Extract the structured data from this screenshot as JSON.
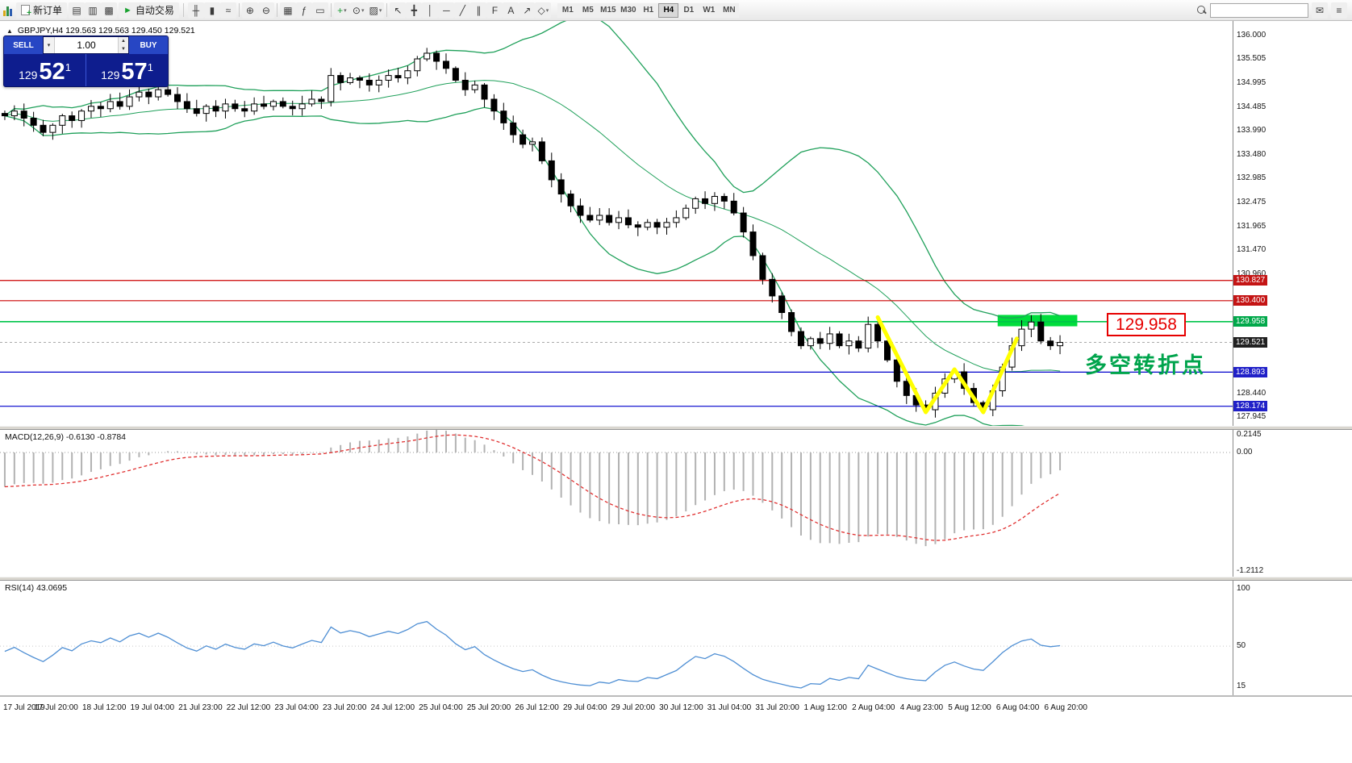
{
  "toolbar": {
    "new_order_label": "新订单",
    "auto_trading_label": "自动交易",
    "left_icons": [
      {
        "name": "new-chart-icon",
        "glyph": "▤"
      },
      {
        "name": "profiles-icon",
        "glyph": "▥"
      },
      {
        "name": "market-watch-icon",
        "glyph": "▩"
      }
    ],
    "icon_groups": [
      {
        "items": [
          {
            "name": "bar-chart-button",
            "glyph": "╫"
          },
          {
            "name": "candlestick-chart-button",
            "glyph": "▮"
          },
          {
            "name": "line-chart-button",
            "glyph": "≈"
          }
        ]
      },
      {
        "items": [
          {
            "name": "zoom-in-button",
            "glyph": "⊕"
          },
          {
            "name": "zoom-out-button",
            "glyph": "⊖"
          }
        ]
      },
      {
        "items": [
          {
            "name": "tile-windows-button",
            "glyph": "▦"
          },
          {
            "name": "indicators-list-button",
            "glyph": "ƒ"
          },
          {
            "name": "data-window-button",
            "glyph": "▭"
          }
        ]
      },
      {
        "items": [
          {
            "name": "add-indicator-button",
            "glyph": "+",
            "dropdown": true,
            "accent": "#1c9e35"
          },
          {
            "name": "periods-button",
            "glyph": "⊙",
            "dropdown": true
          },
          {
            "name": "templates-button",
            "glyph": "▨",
            "dropdown": true
          }
        ]
      },
      {
        "items": [
          {
            "name": "cursor-button",
            "glyph": "↖"
          },
          {
            "name": "crosshair-button",
            "glyph": "╋"
          },
          {
            "name": "vertical-line-button",
            "glyph": "│"
          },
          {
            "name": "horizontal-line-button",
            "glyph": "─"
          },
          {
            "name": "trendline-button",
            "glyph": "╱"
          },
          {
            "name": "channel-button",
            "glyph": "∥"
          },
          {
            "name": "fibonacci-button",
            "glyph": "F"
          },
          {
            "name": "text-button",
            "glyph": "A"
          },
          {
            "name": "arrows-button",
            "glyph": "↗"
          },
          {
            "name": "shapes-button",
            "glyph": "◇",
            "dropdown": true
          }
        ]
      }
    ],
    "timeframes": [
      "M1",
      "M5",
      "M15",
      "M30",
      "H1",
      "H4",
      "D1",
      "W1",
      "MN"
    ],
    "active_timeframe": "H4"
  },
  "order_panel": {
    "sell_label": "SELL",
    "buy_label": "BUY",
    "volume": "1.00",
    "sell_price": {
      "prefix": "129",
      "big": "52",
      "sup": "1"
    },
    "buy_price": {
      "prefix": "129",
      "big": "57",
      "sup": "1"
    }
  },
  "chart_header": {
    "symbol": "GBPJPY,H4",
    "ohlc": "129.563 129.563 129.450 129.521"
  },
  "annotations": {
    "zone_price_label": "129.958",
    "turning_point_text": "多空转折点"
  },
  "macd_panel": {
    "label": "MACD(12,26,9) -0.6130 -0.8784",
    "scale": [
      {
        "label": "0.2145",
        "value": 0.2145
      },
      {
        "label": "0.00",
        "value": 0.0
      },
      {
        "label": "-1.2112",
        "value": -1.2112
      }
    ]
  },
  "rsi_panel": {
    "label": "RSI(14) 43.0695",
    "scale": [
      {
        "label": "100",
        "value": 100
      },
      {
        "label": "50",
        "value": 50
      },
      {
        "label": "15",
        "value": 15
      }
    ]
  },
  "price_scale": {
    "ticks": [
      {
        "label": "136.000",
        "price": 136.0
      },
      {
        "label": "135.505",
        "price": 135.505
      },
      {
        "label": "134.995",
        "price": 134.995
      },
      {
        "label": "134.485",
        "price": 134.485
      },
      {
        "label": "133.990",
        "price": 133.99
      },
      {
        "label": "133.480",
        "price": 133.48
      },
      {
        "label": "132.985",
        "price": 132.985
      },
      {
        "label": "132.475",
        "price": 132.475
      },
      {
        "label": "131.965",
        "price": 131.965
      },
      {
        "label": "131.470",
        "price": 131.47
      },
      {
        "label": "130.960",
        "price": 130.96
      },
      {
        "label": "128.440",
        "price": 128.44
      },
      {
        "label": "127.945",
        "price": 127.945
      }
    ],
    "tags": [
      {
        "label": "130.827",
        "price": 130.827,
        "bg": "#c41414"
      },
      {
        "label": "130.400",
        "price": 130.4,
        "bg": "#c41414"
      },
      {
        "label": "129.958",
        "price": 129.958,
        "bg": "#00a84a"
      },
      {
        "label": "129.521",
        "price": 129.521,
        "bg": "#202020"
      },
      {
        "label": "128.893",
        "price": 128.893,
        "bg": "#2020c8"
      },
      {
        "label": "128.174",
        "price": 128.174,
        "bg": "#2020c8"
      }
    ]
  },
  "time_axis": {
    "labels": [
      "17 Jul 2019",
      "17 Jul 20:00",
      "18 Jul 12:00",
      "19 Jul 04:00",
      "21 Jul 23:00",
      "22 Jul 12:00",
      "23 Jul 04:00",
      "23 Jul 20:00",
      "24 Jul 12:00",
      "25 Jul 04:00",
      "25 Jul 20:00",
      "26 Jul 12:00",
      "29 Jul 04:00",
      "29 Jul 20:00",
      "30 Jul 12:00",
      "31 Jul 04:00",
      "31 Jul 20:00",
      "1 Aug 12:00",
      "2 Aug 04:00",
      "4 Aug 23:00",
      "5 Aug 12:00",
      "6 Aug 04:00",
      "6 Aug 20:00"
    ]
  },
  "chart_data": {
    "type": "candlestick",
    "symbol": "GBPJPY",
    "timeframe": "H4",
    "ohlc_display": {
      "open": 129.563,
      "high": 129.563,
      "low": 129.45,
      "close": 129.521
    },
    "y_axis": {
      "min": 127.76,
      "max": 136.3
    },
    "closes": [
      134.3,
      134.4,
      134.25,
      134.1,
      133.95,
      134.1,
      134.3,
      134.2,
      134.4,
      134.5,
      134.45,
      134.6,
      134.5,
      134.7,
      134.8,
      134.7,
      134.85,
      134.75,
      134.6,
      134.45,
      134.35,
      134.5,
      134.4,
      134.55,
      134.45,
      134.4,
      134.55,
      134.5,
      134.6,
      134.5,
      134.45,
      134.55,
      134.65,
      134.6,
      135.15,
      135.0,
      135.1,
      135.05,
      134.95,
      135.05,
      135.15,
      135.1,
      135.25,
      135.5,
      135.62,
      135.45,
      135.3,
      135.05,
      134.85,
      134.95,
      134.65,
      134.4,
      134.15,
      133.9,
      133.7,
      133.75,
      133.35,
      132.95,
      132.65,
      132.4,
      132.2,
      132.1,
      132.2,
      132.05,
      132.15,
      132.0,
      131.95,
      132.05,
      131.95,
      132.05,
      132.15,
      132.35,
      132.55,
      132.45,
      132.6,
      132.5,
      132.25,
      131.85,
      131.35,
      130.85,
      130.5,
      130.15,
      129.75,
      129.45,
      129.6,
      129.5,
      129.7,
      129.45,
      129.55,
      129.4,
      129.9,
      129.55,
      129.15,
      128.7,
      128.4,
      128.2,
      128.1,
      128.45,
      128.75,
      128.9,
      128.55,
      128.25,
      128.1,
      128.5,
      129.0,
      129.45,
      129.8,
      129.95,
      129.55,
      129.45,
      129.52
    ],
    "indicators": {
      "bollinger": {
        "period": 20,
        "deviation": 2,
        "color": "#1fa05a"
      },
      "macd": {
        "fast": 12,
        "slow": 26,
        "signal": 9,
        "main_value": -0.613,
        "signal_value": -0.8784
      },
      "rsi": {
        "period": 14,
        "value": 43.0695,
        "color": "#4f8fd4"
      }
    },
    "hlines": [
      {
        "price": 130.827,
        "color": "#cc0000"
      },
      {
        "price": 130.4,
        "color": "#cc0000"
      },
      {
        "price": 129.958,
        "color": "#00c44a"
      },
      {
        "price": 128.893,
        "color": "#0000cc"
      },
      {
        "price": 128.174,
        "color": "#0000cc"
      }
    ],
    "current_price": 129.521,
    "highlight_zone": {
      "bar_start": 104,
      "bar_end": 112.3,
      "price_top": 130.1,
      "price_bottom": 129.86,
      "color": "#00dd3c"
    },
    "w_pattern": {
      "color": "#ffff00",
      "points": [
        [
          91,
          130.05
        ],
        [
          96,
          128.05
        ],
        [
          99,
          128.95
        ],
        [
          102,
          128.05
        ],
        [
          105.5,
          129.6
        ]
      ]
    }
  }
}
